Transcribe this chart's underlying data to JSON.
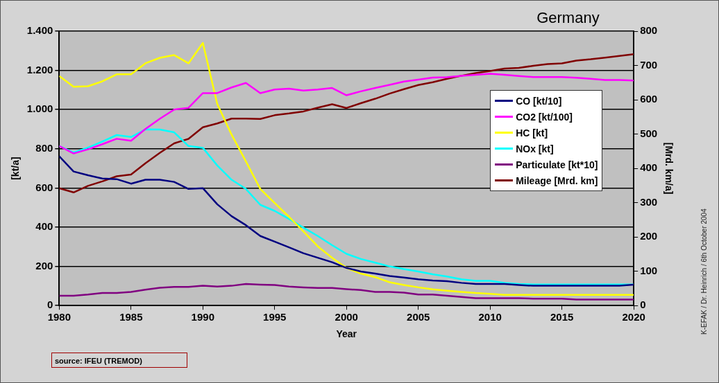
{
  "chart_data": {
    "type": "line",
    "title": "Germany",
    "xlabel": "Year",
    "ylabel": "[kt/a]",
    "y2label": "[Mrd. km/a]",
    "x": [
      1980,
      1981,
      1982,
      1983,
      1984,
      1985,
      1986,
      1987,
      1988,
      1989,
      1990,
      1991,
      1992,
      1993,
      1994,
      1995,
      1996,
      1997,
      1998,
      1999,
      2000,
      2001,
      2002,
      2003,
      2004,
      2005,
      2006,
      2007,
      2008,
      2009,
      2010,
      2011,
      2012,
      2013,
      2014,
      2015,
      2016,
      2017,
      2018,
      2019,
      2020
    ],
    "series": [
      {
        "name": "CO [kt/10]",
        "color": "#000080",
        "values": [
          762,
          684,
          665,
          648,
          645,
          622,
          642,
          642,
          631,
          595,
          599,
          517,
          456,
          410,
          355,
          326,
          297,
          267,
          244,
          221,
          192,
          174,
          163,
          151,
          143,
          134,
          128,
          124,
          116,
          110,
          110,
          110,
          105,
          101,
          101,
          101,
          101,
          101,
          101,
          101,
          107
        ]
      },
      {
        "name": "CO2 [kt/100]",
        "color": "#ff00ff",
        "values": [
          814,
          776,
          797,
          823,
          851,
          841,
          901,
          953,
          1000,
          1009,
          1084,
          1084,
          1113,
          1136,
          1084,
          1102,
          1107,
          1097,
          1102,
          1110,
          1073,
          1093,
          1110,
          1126,
          1143,
          1153,
          1163,
          1165,
          1172,
          1177,
          1183,
          1177,
          1171,
          1166,
          1166,
          1166,
          1162,
          1157,
          1151,
          1151,
          1148
        ]
      },
      {
        "name": "HC [kt]",
        "color": "#ffff00",
        "values": [
          1171,
          1116,
          1119,
          1144,
          1180,
          1180,
          1236,
          1264,
          1278,
          1236,
          1340,
          1029,
          872,
          735,
          595,
          523,
          453,
          378,
          302,
          244,
          192,
          163,
          145,
          119,
          105,
          93,
          83,
          76,
          70,
          64,
          60,
          55,
          55,
          55,
          55,
          55,
          55,
          55,
          55,
          55,
          55
        ]
      },
      {
        "name": "NOx [kt]",
        "color": "#00ffff",
        "values": [
          814,
          781,
          806,
          837,
          870,
          860,
          899,
          898,
          884,
          814,
          805,
          715,
          642,
          595,
          514,
          483,
          442,
          398,
          355,
          308,
          264,
          238,
          219,
          200,
          186,
          174,
          160,
          148,
          134,
          126,
          126,
          116,
          110,
          108,
          108,
          108,
          108,
          108,
          108,
          108,
          108
        ]
      },
      {
        "name": "Particulate [kt*10]",
        "color": "#800080",
        "values": [
          50,
          50,
          56,
          64,
          64,
          70,
          81,
          91,
          95,
          95,
          101,
          97,
          101,
          110,
          107,
          105,
          97,
          93,
          90,
          90,
          84,
          79,
          70,
          70,
          66,
          56,
          56,
          50,
          44,
          38,
          38,
          38,
          38,
          35,
          35,
          35,
          31,
          31,
          31,
          31,
          31
        ]
      },
      {
        "name": "Mileage [Mrd. km]",
        "color": "#800000",
        "axis": "y2",
        "values": [
          342,
          330,
          349,
          362,
          377,
          382,
          415,
          445,
          473,
          486,
          520,
          531,
          545,
          545,
          544,
          555,
          560,
          566,
          577,
          587,
          576,
          590,
          603,
          618,
          631,
          643,
          651,
          661,
          670,
          678,
          684,
          691,
          693,
          699,
          704,
          706,
          714,
          718,
          723,
          728,
          733
        ]
      }
    ],
    "xlim": [
      1980,
      2020
    ],
    "xticks": [
      1980,
      1985,
      1990,
      1995,
      2000,
      2005,
      2010,
      2015,
      2020
    ],
    "ylim": [
      0,
      1400
    ],
    "yticks": [
      0,
      200,
      400,
      600,
      800,
      {
        "value": 1000,
        "label": "1.000"
      },
      {
        "value": 1200,
        "label": "1.200"
      },
      {
        "value": 1400,
        "label": "1.400"
      }
    ],
    "y2lim": [
      0,
      800
    ],
    "y2ticks": [
      0,
      100,
      200,
      300,
      400,
      500,
      600,
      700,
      800
    ],
    "grid": "y",
    "legend": "right",
    "marker": "none",
    "line_style": "solid",
    "annotations": [
      "source: IFEU (TREMOD)",
      "K-EFAK / Dr. Heinrich / 6th October  2004"
    ]
  }
}
